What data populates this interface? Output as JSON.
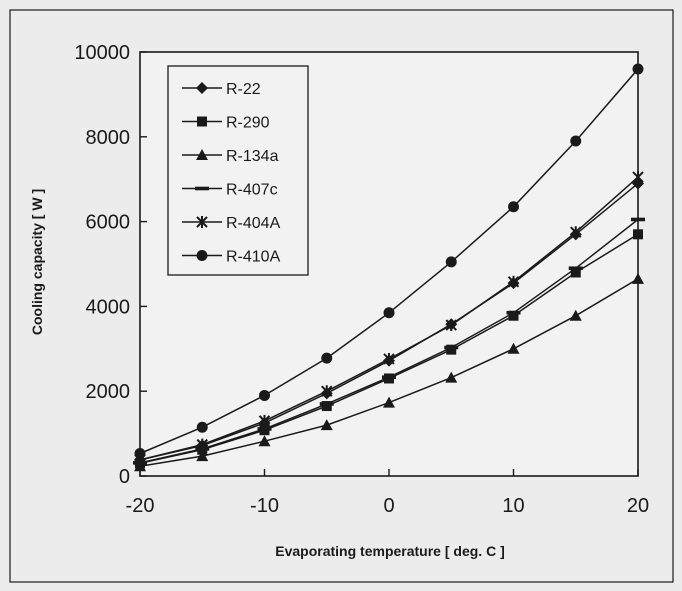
{
  "chart_data": {
    "type": "line",
    "title": "",
    "xlabel": "Evaporating temperature [ deg. C ]",
    "ylabel": "Cooling capacity [ W ]",
    "xlim": [
      -20,
      20
    ],
    "ylim": [
      0,
      10000
    ],
    "xticks": [
      -20,
      -10,
      0,
      10,
      20
    ],
    "yticks": [
      0,
      2000,
      4000,
      6000,
      8000,
      10000
    ],
    "x": [
      -20,
      -15,
      -10,
      -5,
      0,
      5,
      10,
      15,
      20
    ],
    "grid": false,
    "legend_position": "top-left",
    "series": [
      {
        "name": "R-22",
        "marker": "diamond",
        "values": [
          380,
          720,
          1250,
          1950,
          2720,
          3580,
          4550,
          5700,
          6900
        ]
      },
      {
        "name": "R-290",
        "marker": "square",
        "values": [
          300,
          620,
          1080,
          1650,
          2300,
          2980,
          3780,
          4800,
          5700
        ]
      },
      {
        "name": "R-134a",
        "marker": "triangle",
        "values": [
          230,
          470,
          820,
          1200,
          1730,
          2320,
          3000,
          3780,
          4650
        ]
      },
      {
        "name": "R-407c",
        "marker": "dash",
        "values": [
          310,
          640,
          1110,
          1700,
          2330,
          3030,
          3850,
          4900,
          6050
        ]
      },
      {
        "name": "R-404A",
        "marker": "star",
        "values": [
          380,
          740,
          1300,
          2000,
          2760,
          3560,
          4580,
          5750,
          7050
        ]
      },
      {
        "name": "R-410A",
        "marker": "circle",
        "values": [
          530,
          1150,
          1900,
          2780,
          3850,
          5050,
          6350,
          7900,
          9600
        ]
      }
    ]
  },
  "colors": {
    "ink": "#1a1a1a",
    "plot_background": "#f2f2f2",
    "page_background": "#ececec"
  }
}
